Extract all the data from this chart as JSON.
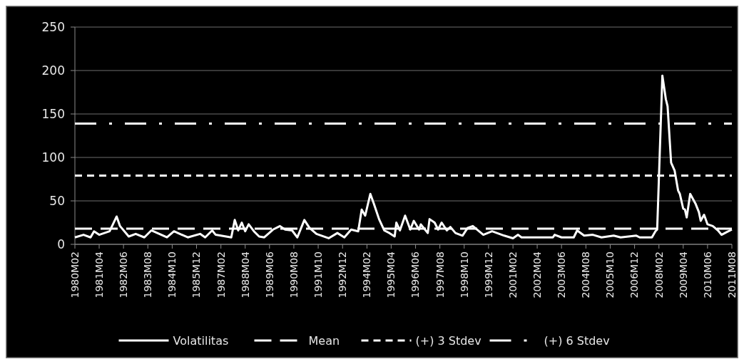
{
  "chart_data": {
    "type": "line",
    "xlim": [
      "1980-02",
      "2011-08"
    ],
    "xticks": [
      {
        "value": "1980-02",
        "label": "1980M02"
      },
      {
        "value": "1981-04",
        "label": "1981M04"
      },
      {
        "value": "1982-06",
        "label": "1982M06"
      },
      {
        "value": "1983-08",
        "label": "1983M08"
      },
      {
        "value": "1984-10",
        "label": "1984M10"
      },
      {
        "value": "1985-12",
        "label": "1985M12"
      },
      {
        "value": "1987-02",
        "label": "1987M02"
      },
      {
        "value": "1988-04",
        "label": "1988M04"
      },
      {
        "value": "1989-06",
        "label": "1989M06"
      },
      {
        "value": "1990-08",
        "label": "1990M08"
      },
      {
        "value": "1991-10",
        "label": "1991M10"
      },
      {
        "value": "1992-12",
        "label": "1992M12"
      },
      {
        "value": "1994-02",
        "label": "1994M02"
      },
      {
        "value": "1995-04",
        "label": "1995M04"
      },
      {
        "value": "1996-06",
        "label": "1996M06"
      },
      {
        "value": "1997-08",
        "label": "1997M08"
      },
      {
        "value": "1998-10",
        "label": "1998M10"
      },
      {
        "value": "1999-12",
        "label": "1999M12"
      },
      {
        "value": "2001-02",
        "label": "2001M02"
      },
      {
        "value": "2002-04",
        "label": "2002M04"
      },
      {
        "value": "2003-06",
        "label": "2003M06"
      },
      {
        "value": "2004-08",
        "label": "2004M08"
      },
      {
        "value": "2005-10",
        "label": "2005M10"
      },
      {
        "value": "2006-12",
        "label": "2006M12"
      },
      {
        "value": "2008-02",
        "label": "2008M02"
      },
      {
        "value": "2009-04",
        "label": "2009M04"
      },
      {
        "value": "2010-06",
        "label": "2010M06"
      },
      {
        "value": "2011-08",
        "label": "2011M08"
      }
    ],
    "ylim": [
      0,
      250
    ],
    "yticks": [
      0,
      50,
      100,
      150,
      200,
      250
    ],
    "grid": "y",
    "legend": "bottom",
    "series": [
      {
        "name": "Volatilitas",
        "color": "#ffffff",
        "line_style": "solid",
        "x": [
          "1980-02",
          "1980-07",
          "1980-11",
          "1981-01",
          "1981-04",
          "1981-10",
          "1982-02",
          "1982-04",
          "1982-09",
          "1983-01",
          "1983-06",
          "1983-10",
          "1984-07",
          "1984-11",
          "1985-07",
          "1986-02",
          "1986-05",
          "1986-09",
          "1986-11",
          "1987-08",
          "1987-10",
          "1987-12",
          "1988-02",
          "1988-04",
          "1988-06",
          "1988-09",
          "1988-12",
          "1989-03",
          "1989-08",
          "1989-12",
          "1990-03",
          "1990-07",
          "1990-10",
          "1991-02",
          "1991-05",
          "1991-09",
          "1992-04",
          "1992-09",
          "1993-01",
          "1993-05",
          "1993-09",
          "1993-11",
          "1994-01",
          "1994-04",
          "1994-06",
          "1994-09",
          "1994-12",
          "1995-03",
          "1995-06",
          "1995-07",
          "1995-09",
          "1995-12",
          "1996-03",
          "1996-05",
          "1996-08",
          "1996-09",
          "1997-01",
          "1997-02",
          "1997-05",
          "1997-07",
          "1997-09",
          "1997-12",
          "1998-02",
          "1998-05",
          "1998-09",
          "1998-12",
          "1999-03",
          "1999-09",
          "2000-02",
          "2000-09",
          "2001-02",
          "2001-05",
          "2001-07",
          "2003-01",
          "2003-02",
          "2003-06",
          "2004-01",
          "2004-03",
          "2004-07",
          "2004-12",
          "2005-05",
          "2005-12",
          "2006-04",
          "2007-01",
          "2007-03",
          "2007-10",
          "2007-12",
          "2008-01",
          "2008-04",
          "2008-06",
          "2008-07",
          "2008-09",
          "2008-11",
          "2009-01",
          "2009-02",
          "2009-04",
          "2009-05",
          "2009-06",
          "2009-08",
          "2009-11",
          "2010-01",
          "2010-02",
          "2010-04",
          "2010-06",
          "2010-09",
          "2010-12",
          "2011-02",
          "2011-05",
          "2011-08"
        ],
        "values": [
          8,
          11,
          8,
          15,
          11,
          15,
          32,
          21,
          9,
          12,
          8,
          16,
          8,
          15,
          8,
          12,
          8,
          16,
          11,
          8,
          28,
          16,
          25,
          15,
          23,
          15,
          9,
          8,
          17,
          21,
          17,
          16,
          8,
          28,
          19,
          12,
          7,
          13,
          8,
          17,
          15,
          40,
          33,
          58,
          47,
          29,
          16,
          13,
          9,
          25,
          16,
          33,
          17,
          27,
          17,
          23,
          13,
          29,
          25,
          17,
          25,
          16,
          20,
          13,
          10,
          19,
          21,
          11,
          15,
          10,
          7,
          11,
          8,
          8,
          11,
          8,
          8,
          16,
          10,
          11,
          8,
          10,
          8,
          10,
          8,
          8,
          15,
          17,
          194,
          167,
          159,
          94,
          85,
          62,
          58,
          41,
          40,
          31,
          58,
          47,
          37,
          27,
          34,
          23,
          21,
          16,
          11,
          14,
          17
        ]
      },
      {
        "name": "Mean",
        "color": "#ffffff",
        "line_style": "dashed",
        "x": [
          "1980-02",
          "2011-08"
        ],
        "values": [
          18,
          18
        ]
      },
      {
        "name": "(+) 3 Stdev",
        "color": "#ffffff",
        "line_style": "dotted",
        "x": [
          "1980-02",
          "2011-08"
        ],
        "values": [
          79,
          79
        ]
      },
      {
        "name": "(+) 6 Stdev",
        "color": "#ffffff",
        "line_style": "dashdot",
        "x": [
          "1980-02",
          "2011-08"
        ],
        "values": [
          139,
          139
        ]
      }
    ]
  }
}
